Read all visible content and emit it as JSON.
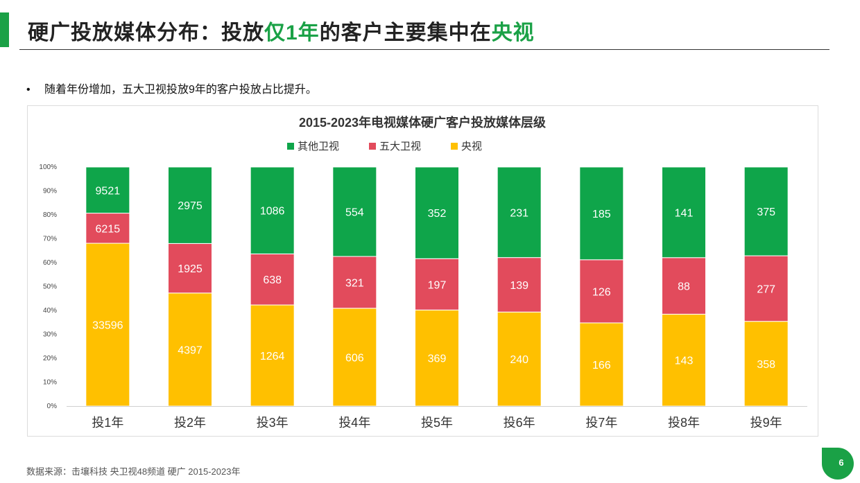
{
  "slide": {
    "title_parts": [
      "硬广投放媒体分布",
      "：投放",
      "仅1年",
      "的客户主要集中在",
      "央视"
    ],
    "bullet": "随着年份增加，五大卫视投放9年的客户投放占比提升。",
    "bullet_marker": "•",
    "source": "数据来源：击壤科技 央卫视48频道 硬广 2015-2023年",
    "page_number": "6",
    "colors": {
      "accent": "#1aa146",
      "rule": "#333333"
    }
  },
  "chart_data": {
    "type": "bar",
    "stacked": "percent",
    "title": "2015-2023年电视媒体硬广客户投放媒体层级",
    "categories": [
      "投1年",
      "投2年",
      "投3年",
      "投4年",
      "投5年",
      "投6年",
      "投7年",
      "投8年",
      "投9年"
    ],
    "series": [
      {
        "name": "央视",
        "color": "#ffc000",
        "values": [
          33596,
          4397,
          1264,
          606,
          369,
          240,
          166,
          143,
          358
        ]
      },
      {
        "name": "五大卫视",
        "color": "#e24b5c",
        "values": [
          6215,
          1925,
          638,
          321,
          197,
          139,
          126,
          88,
          277
        ]
      },
      {
        "name": "其他卫视",
        "color": "#0fa54a",
        "values": [
          9521,
          2975,
          1086,
          554,
          352,
          231,
          185,
          141,
          375
        ]
      }
    ],
    "legend_order": [
      "其他卫视",
      "五大卫视",
      "央视"
    ],
    "legend_position": "top",
    "y_ticks": [
      "0%",
      "10%",
      "20%",
      "30%",
      "40%",
      "50%",
      "60%",
      "70%",
      "80%",
      "90%",
      "100%"
    ],
    "ylim": [
      0,
      100
    ],
    "grid": false
  }
}
